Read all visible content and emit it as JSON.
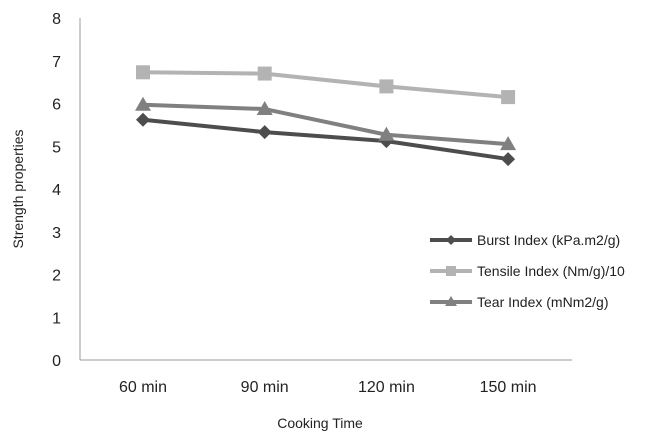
{
  "chart_data": {
    "type": "line",
    "title": "",
    "xlabel": "Cooking Time",
    "ylabel": "Strength properties",
    "categories": [
      "60 min",
      "90 min",
      "120 min",
      "150 min"
    ],
    "ylim": [
      0,
      8
    ],
    "yticks": [
      "0",
      "1",
      "2",
      "3",
      "4",
      "5",
      "6",
      "7",
      "8"
    ],
    "grid": false,
    "legend_position": "right",
    "series": [
      {
        "name": "Burst Index (kPa.m2/g)",
        "values": [
          5.62,
          5.33,
          5.12,
          4.7
        ],
        "color": "#4d4d4d",
        "marker": "diamond"
      },
      {
        "name": "Tensile Index (Nm/g)/10",
        "values": [
          6.73,
          6.7,
          6.4,
          6.15
        ],
        "color": "#b3b3b3",
        "marker": "square"
      },
      {
        "name": "Tear Index (mNm2/g)",
        "values": [
          5.97,
          5.87,
          5.27,
          5.05
        ],
        "color": "#808080",
        "marker": "triangle"
      }
    ]
  }
}
